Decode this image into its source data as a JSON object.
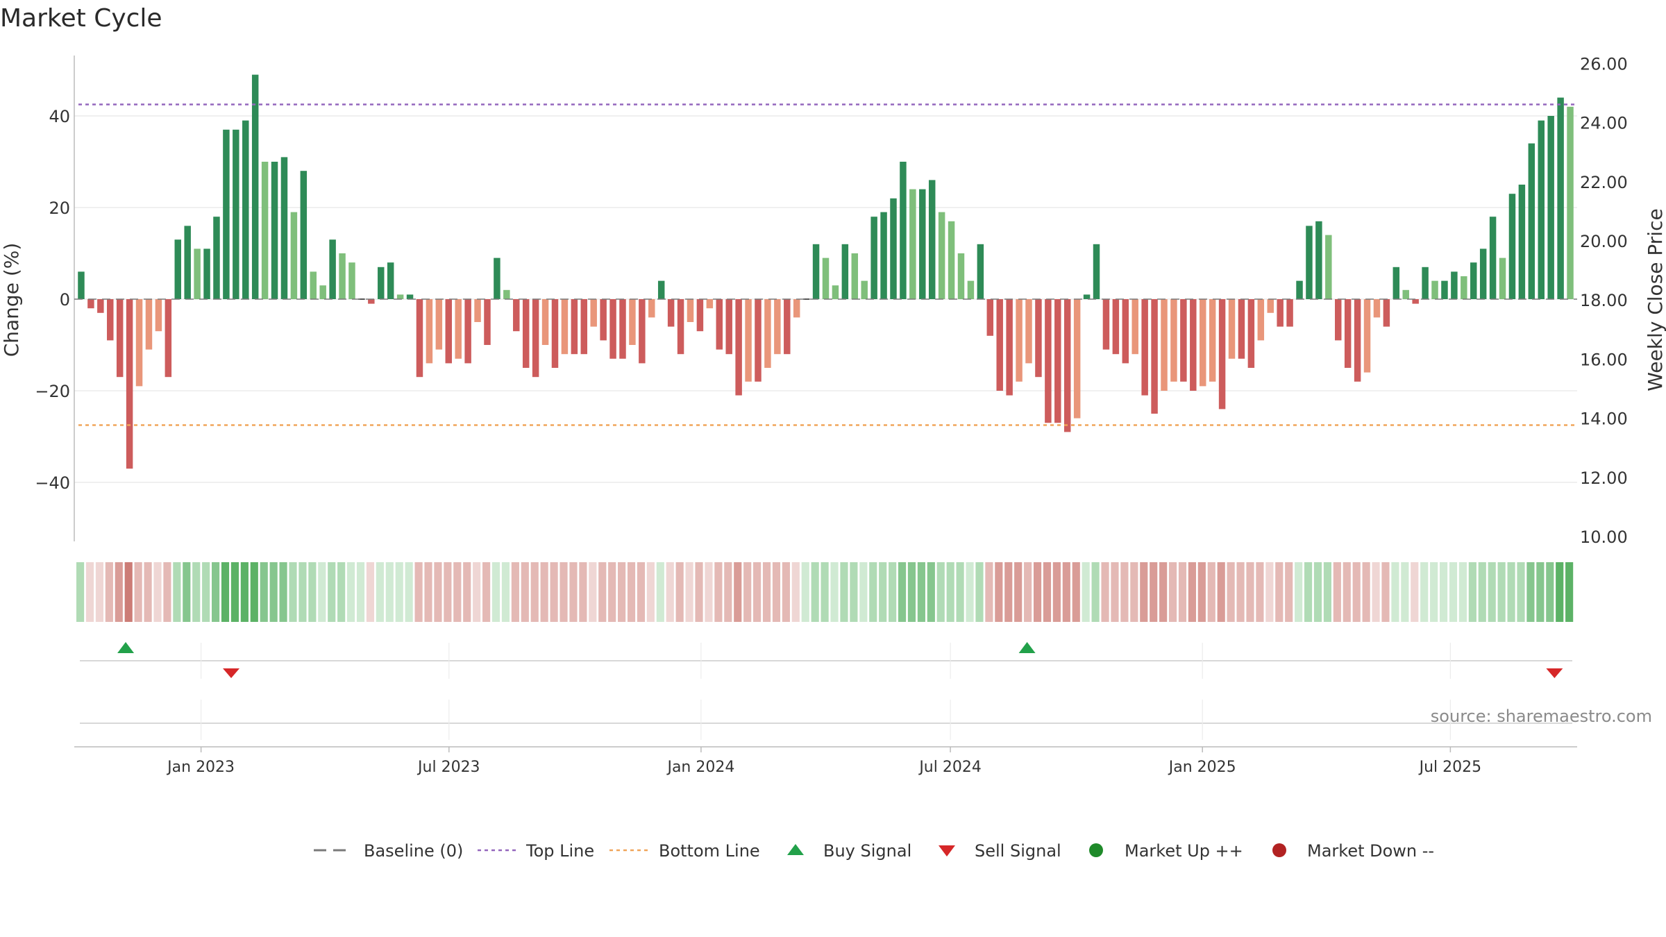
{
  "title": "Market Cycle",
  "source": "source: sharemaestro.com",
  "chart_data": {
    "type": "bar",
    "title": "Market Cycle",
    "ylabel_left": "Change (%)",
    "ylabel_right": "Weekly Close Price",
    "ylim_left": [
      -53,
      53
    ],
    "ylim_right": [
      10,
      26
    ],
    "y_ticks_left": [
      {
        "value": 40,
        "label": "40"
      },
      {
        "value": 20,
        "label": "20"
      },
      {
        "value": 0,
        "label": "0"
      },
      {
        "value": -20,
        "label": "−20"
      },
      {
        "value": -40,
        "label": "−40"
      }
    ],
    "y_ticks_right": [
      "26.00",
      "24.00",
      "22.00",
      "20.00",
      "18.00",
      "16.00",
      "14.00",
      "12.00",
      "10.00"
    ],
    "x_start": "2022-10-03",
    "x_end": "2025-09-29",
    "x_ticks": [
      {
        "date": "2023-01-01",
        "label": "Jan 2023"
      },
      {
        "date": "2023-07-01",
        "label": "Jul 2023"
      },
      {
        "date": "2024-01-01",
        "label": "Jan 2024"
      },
      {
        "date": "2024-07-01",
        "label": "Jul 2024"
      },
      {
        "date": "2025-01-01",
        "label": "Jan 2025"
      },
      {
        "date": "2025-07-01",
        "label": "Jul 2025"
      }
    ],
    "top_line": 42.5,
    "bottom_line": -27.5,
    "weekly_change": [
      6,
      -2,
      -3,
      -9,
      -17,
      -37,
      -19,
      -11,
      -7,
      -17,
      13,
      16,
      11,
      11,
      18,
      37,
      37,
      39,
      49,
      30,
      30,
      31,
      19,
      28,
      6,
      3,
      13,
      10,
      8,
      0,
      -1,
      7,
      8,
      1,
      1,
      -17,
      -14,
      -11,
      -14,
      -13,
      -14,
      -5,
      -10,
      9,
      2,
      -7,
      -15,
      -17,
      -10,
      -15,
      -12,
      -12,
      -12,
      -6,
      -9,
      -13,
      -13,
      -10,
      -14,
      -4,
      4,
      -6,
      -12,
      -5,
      -7,
      -2,
      -11,
      -12,
      -21,
      -18,
      -18,
      -15,
      -12,
      -12,
      -4,
      0,
      12,
      9,
      3,
      12,
      10,
      4,
      18,
      19,
      22,
      30,
      24,
      24,
      26,
      19,
      17,
      10,
      4,
      12,
      -8,
      -20,
      -21,
      -18,
      -14,
      -17,
      -27,
      -27,
      -29,
      -26,
      1,
      12,
      -11,
      -12,
      -14,
      -12,
      -21,
      -25,
      -20,
      -18,
      -18,
      -20,
      -19,
      -18,
      -24,
      -13,
      -13,
      -15,
      -9,
      -3,
      -6,
      -6,
      4,
      16,
      17,
      14,
      -9,
      -15,
      -18,
      -16,
      -4,
      -6,
      7,
      2,
      -1,
      7,
      4,
      4,
      6,
      5,
      8,
      11,
      18,
      9,
      23,
      25,
      34,
      39,
      40,
      44,
      42
    ],
    "band_strength": [
      2,
      1,
      1,
      2,
      3,
      4,
      2,
      2,
      1,
      2,
      2,
      3,
      2,
      2,
      3,
      4,
      4,
      4,
      4,
      3,
      3,
      3,
      2,
      2,
      2,
      1,
      2,
      2,
      1,
      1,
      1,
      1,
      1,
      1,
      1,
      2,
      2,
      2,
      2,
      2,
      2,
      1,
      2,
      1,
      1,
      2,
      2,
      2,
      2,
      2,
      2,
      2,
      2,
      1,
      2,
      2,
      2,
      2,
      2,
      1,
      1,
      1,
      2,
      1,
      2,
      1,
      2,
      2,
      3,
      2,
      2,
      2,
      2,
      2,
      1,
      1,
      2,
      2,
      1,
      2,
      2,
      1,
      2,
      2,
      2,
      3,
      3,
      3,
      3,
      2,
      2,
      2,
      1,
      2,
      2,
      3,
      3,
      3,
      2,
      3,
      3,
      3,
      3,
      3,
      1,
      2,
      2,
      2,
      2,
      2,
      3,
      3,
      3,
      2,
      2,
      3,
      3,
      2,
      3,
      2,
      2,
      2,
      2,
      1,
      2,
      2,
      1,
      2,
      2,
      2,
      2,
      2,
      2,
      2,
      1,
      2,
      1,
      1,
      1,
      1,
      1,
      1,
      1,
      1,
      2,
      2,
      2,
      2,
      2,
      2,
      3,
      3,
      3,
      4,
      4
    ],
    "buy_signals": [
      "2022-11-07",
      "2024-08-26"
    ],
    "sell_signals": [
      "2023-01-23",
      "2025-09-15"
    ]
  },
  "legend": [
    {
      "label": "Baseline (0)",
      "symbol": "dash",
      "color": "#7a7a7a"
    },
    {
      "label": "Top Line",
      "symbol": "dotted",
      "color": "#9467bd"
    },
    {
      "label": "Bottom Line",
      "symbol": "dotted",
      "color": "#f0a55a"
    },
    {
      "label": "Buy Signal",
      "symbol": "triangle-up",
      "color": "#22a14a"
    },
    {
      "label": "Sell Signal",
      "symbol": "triangle-down",
      "color": "#d62728"
    },
    {
      "label": "Market Up ++",
      "symbol": "circle",
      "color": "#1f8a2a"
    },
    {
      "label": "Market Down --",
      "symbol": "circle",
      "color": "#b22222"
    }
  ],
  "colors": {
    "up_strong": "#2e8b57",
    "up_light": "#7fbf7b",
    "down_strong": "#cd5c5c",
    "down_light": "#e9967a",
    "grid": "#e6e6e6",
    "axis": "#bbbbbb"
  }
}
